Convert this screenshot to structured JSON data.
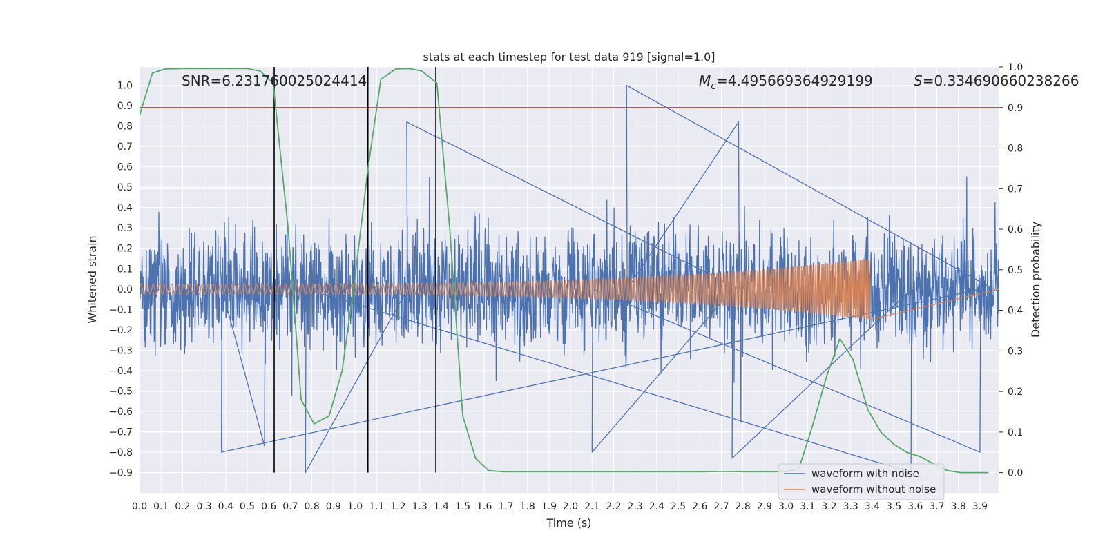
{
  "chart_data": {
    "type": "line",
    "title": "stats at each timestep for test data 919 [signal=1.0]",
    "xlabel": "Time (s)",
    "ylabel_left": "Whitened strain",
    "ylabel_right": "Detection probability",
    "xlim": [
      0.0,
      3.99
    ],
    "ylim_left": [
      -1.0,
      1.09
    ],
    "ylim_right": [
      -0.05,
      1.0
    ],
    "xticks": [
      0.0,
      0.1,
      0.2,
      0.3,
      0.4,
      0.5,
      0.6,
      0.7,
      0.8,
      0.9,
      1.0,
      1.1,
      1.2,
      1.3,
      1.4,
      1.5,
      1.6,
      1.7,
      1.8,
      1.9,
      2.0,
      2.1,
      2.2,
      2.3,
      2.4,
      2.5,
      2.6,
      2.7,
      2.8,
      2.9,
      3.0,
      3.1,
      3.2,
      3.3,
      3.4,
      3.5,
      3.6,
      3.7,
      3.8,
      3.9
    ],
    "xtick_labels": [
      "0.0",
      "0.1",
      "0.2",
      "0.3",
      "0.4",
      "0.5",
      "0.6",
      "0.7",
      "0.8",
      "0.9",
      "1.0",
      "1.1",
      "1.2",
      "1.3",
      "1.4",
      "1.5",
      "1.6",
      "1.7",
      "1.8",
      "1.9",
      "2.0",
      "2.1",
      "2.2",
      "2.3",
      "2.4",
      "2.5",
      "2.6",
      "2.7",
      "2.8",
      "2.9",
      "3.0",
      "3.1",
      "3.2",
      "3.3",
      "3.4",
      "3.5",
      "3.6",
      "3.7",
      "3.8",
      "3.9"
    ],
    "yticks_left": [
      -0.9,
      -0.8,
      -0.7,
      -0.6,
      -0.5,
      -0.4,
      -0.3,
      -0.2,
      -0.1,
      0.0,
      0.1,
      0.2,
      0.3,
      0.4,
      0.5,
      0.6,
      0.7,
      0.8,
      0.9,
      1.0
    ],
    "ytick_labels_left": [
      "−0.9",
      "−0.8",
      "−0.7",
      "−0.6",
      "−0.5",
      "−0.4",
      "−0.3",
      "−0.2",
      "−0.1",
      "0.0",
      "0.1",
      "0.2",
      "0.3",
      "0.4",
      "0.5",
      "0.6",
      "0.7",
      "0.8",
      "0.9",
      "1.0"
    ],
    "yticks_right": [
      0.0,
      0.1,
      0.2,
      0.3,
      0.4,
      0.5,
      0.6,
      0.7,
      0.8,
      0.9,
      1.0
    ],
    "ytick_labels_right": [
      "0.0",
      "0.1",
      "0.2",
      "0.3",
      "0.4",
      "0.5",
      "0.6",
      "0.7",
      "0.8",
      "0.9",
      "1.0"
    ],
    "annotations": {
      "snr": "SNR=6.231760025024414",
      "mc_symbol": "M",
      "mc_sub": "c",
      "mc_value": "=4.495669364929199",
      "s_symbol": "S",
      "s_value": "=0.334690660238266"
    },
    "legend": {
      "position": "lower-right",
      "entries": [
        "waveform with noise",
        "waveform without noise"
      ]
    },
    "colors": {
      "noise": "#4c72b0",
      "clean": "#dd8452",
      "prob": "#55a868",
      "threshold": "#c44e52",
      "vline": "#000000",
      "axes_bg": "#eaeaf2",
      "grid": "#ffffff"
    },
    "series": [
      {
        "name": "waveform with noise",
        "axis": "left",
        "style": "dense-noise",
        "t_range": [
          0.0,
          3.99
        ],
        "typical_envelope": [
          -0.45,
          0.45
        ],
        "peaks": [
          {
            "t": 2.26,
            "v": 1.0
          },
          {
            "t": 2.78,
            "v": 0.82
          },
          {
            "t": 1.24,
            "v": 0.82
          },
          {
            "t": 0.77,
            "v": -0.9
          },
          {
            "t": 3.58,
            "v": -0.9
          },
          {
            "t": 2.75,
            "v": -0.83
          },
          {
            "t": 2.1,
            "v": -0.8
          },
          {
            "t": 3.9,
            "v": -0.8
          },
          {
            "t": 0.38,
            "v": -0.8
          },
          {
            "t": 0.58,
            "v": -0.77
          }
        ]
      },
      {
        "name": "waveform without noise",
        "axis": "left",
        "style": "chirp",
        "t_start": 0.0,
        "t_merger": 3.39,
        "amp_start": 0.025,
        "amp_peak": 0.15,
        "freq_start_hz": 35,
        "freq_end_hz": 120
      },
      {
        "name": "detection probability",
        "axis": "right",
        "x": [
          0.0,
          0.06,
          0.12,
          0.19,
          0.25,
          0.31,
          0.38,
          0.44,
          0.5,
          0.56,
          0.62,
          0.69,
          0.75,
          0.81,
          0.88,
          0.94,
          1.0,
          1.06,
          1.12,
          1.19,
          1.25,
          1.31,
          1.38,
          1.44,
          1.5,
          1.56,
          1.62,
          1.69,
          1.75,
          1.81,
          1.88,
          1.94,
          2.0,
          2.06,
          2.12,
          2.19,
          2.25,
          2.31,
          2.38,
          2.44,
          2.5,
          2.56,
          2.62,
          2.69,
          2.75,
          2.81,
          2.88,
          2.94,
          3.0,
          3.06,
          3.12,
          3.19,
          3.25,
          3.31,
          3.38,
          3.44,
          3.5,
          3.56,
          3.62,
          3.69,
          3.75,
          3.81,
          3.88,
          3.94
        ],
        "values": [
          0.88,
          0.985,
          0.995,
          0.996,
          0.996,
          0.996,
          0.996,
          0.996,
          0.996,
          0.99,
          0.96,
          0.6,
          0.18,
          0.12,
          0.14,
          0.25,
          0.48,
          0.75,
          0.97,
          0.995,
          0.996,
          0.99,
          0.96,
          0.6,
          0.14,
          0.035,
          0.005,
          0.002,
          0.002,
          0.002,
          0.002,
          0.002,
          0.002,
          0.002,
          0.002,
          0.002,
          0.002,
          0.002,
          0.002,
          0.002,
          0.002,
          0.002,
          0.002,
          0.003,
          0.003,
          0.002,
          0.002,
          0.002,
          0.002,
          0.01,
          0.11,
          0.24,
          0.33,
          0.28,
          0.155,
          0.1,
          0.07,
          0.05,
          0.04,
          0.02,
          0.005,
          0.0,
          0.0,
          0.0
        ]
      }
    ],
    "threshold_right": 0.9,
    "vlines_t": [
      0.625,
      1.06,
      1.375
    ]
  }
}
